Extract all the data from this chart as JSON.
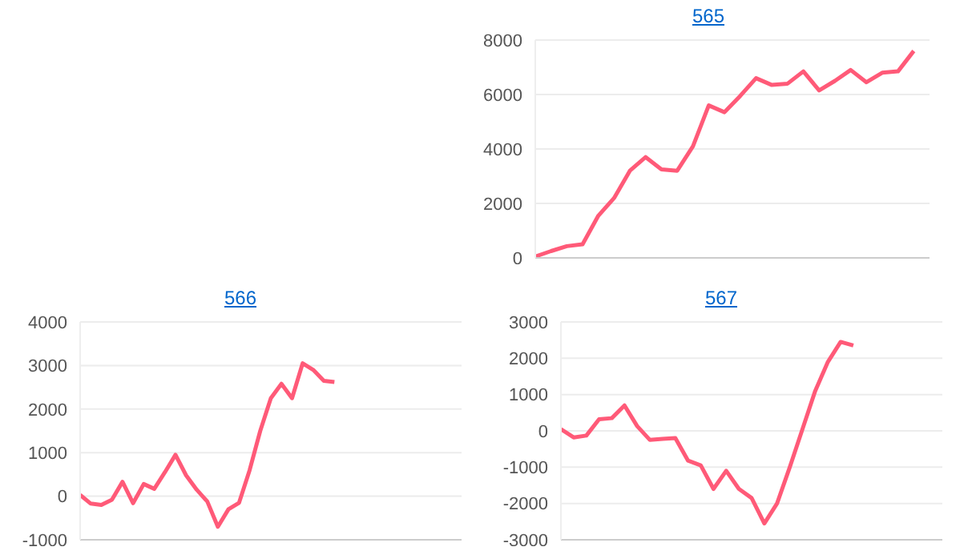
{
  "chart_data": [
    {
      "type": "line",
      "title": "565",
      "categories": [
        null,
        null,
        null,
        null,
        null,
        null,
        null,
        null,
        null,
        null,
        null,
        null,
        null,
        null,
        null,
        null,
        null,
        null,
        null,
        null,
        null,
        null,
        null,
        null,
        null,
        null
      ],
      "series": [
        {
          "color": "#ff5a78",
          "values": [
            50,
            250,
            430,
            500,
            1550,
            2200,
            3200,
            3700,
            3250,
            3200,
            4100,
            5600,
            5350,
            5950,
            6600,
            6350,
            6400,
            6850,
            6150,
            6500,
            6900,
            6450,
            6800,
            6850,
            7600,
            null
          ]
        }
      ],
      "ylim": [
        0,
        8000
      ],
      "yticks": [
        0,
        2000,
        4000,
        6000,
        8000
      ],
      "grid": "y",
      "tick_labels": "y"
    },
    {
      "type": "line",
      "title": "566",
      "categories": [
        null,
        null,
        null,
        null,
        null,
        null,
        null,
        null,
        null,
        null,
        null,
        null,
        null,
        null,
        null,
        null,
        null,
        null,
        null,
        null,
        null,
        null,
        null,
        null,
        null,
        null,
        null,
        null,
        null,
        null,
        null,
        null,
        null,
        null,
        null,
        null,
        null
      ],
      "series": [
        {
          "color": "#ff5a78",
          "values": [
            30,
            -170,
            -200,
            -80,
            330,
            -160,
            280,
            170,
            550,
            950,
            480,
            150,
            -120,
            -700,
            -300,
            -150,
            600,
            1500,
            2250,
            2580,
            2250,
            3050,
            2900,
            2650,
            2620,
            null,
            null,
            null,
            null,
            null,
            null,
            null,
            null,
            null,
            null,
            null,
            null
          ]
        }
      ],
      "ylim": [
        -1000,
        4000
      ],
      "yticks": [
        -1000,
        0,
        1000,
        2000,
        3000,
        4000
      ],
      "grid": "y",
      "tick_labels": "y"
    },
    {
      "type": "line",
      "title": "567",
      "categories": [
        null,
        null,
        null,
        null,
        null,
        null,
        null,
        null,
        null,
        null,
        null,
        null,
        null,
        null,
        null,
        null,
        null,
        null,
        null,
        null,
        null,
        null,
        null,
        null,
        null,
        null,
        null,
        null,
        null,
        null,
        null
      ],
      "series": [
        {
          "color": "#ff5a78",
          "values": [
            50,
            -180,
            -130,
            320,
            350,
            700,
            130,
            -250,
            -220,
            -200,
            -820,
            -950,
            -1600,
            -1100,
            -1600,
            -1850,
            -2550,
            -2000,
            -1000,
            50,
            1100,
            1900,
            2450,
            2350,
            null,
            null,
            null,
            null,
            null,
            null,
            null
          ]
        }
      ],
      "ylim": [
        -3000,
        3000
      ],
      "yticks": [
        -3000,
        -2000,
        -1000,
        0,
        1000,
        2000,
        3000
      ],
      "grid": "y",
      "tick_labels": "y"
    }
  ]
}
